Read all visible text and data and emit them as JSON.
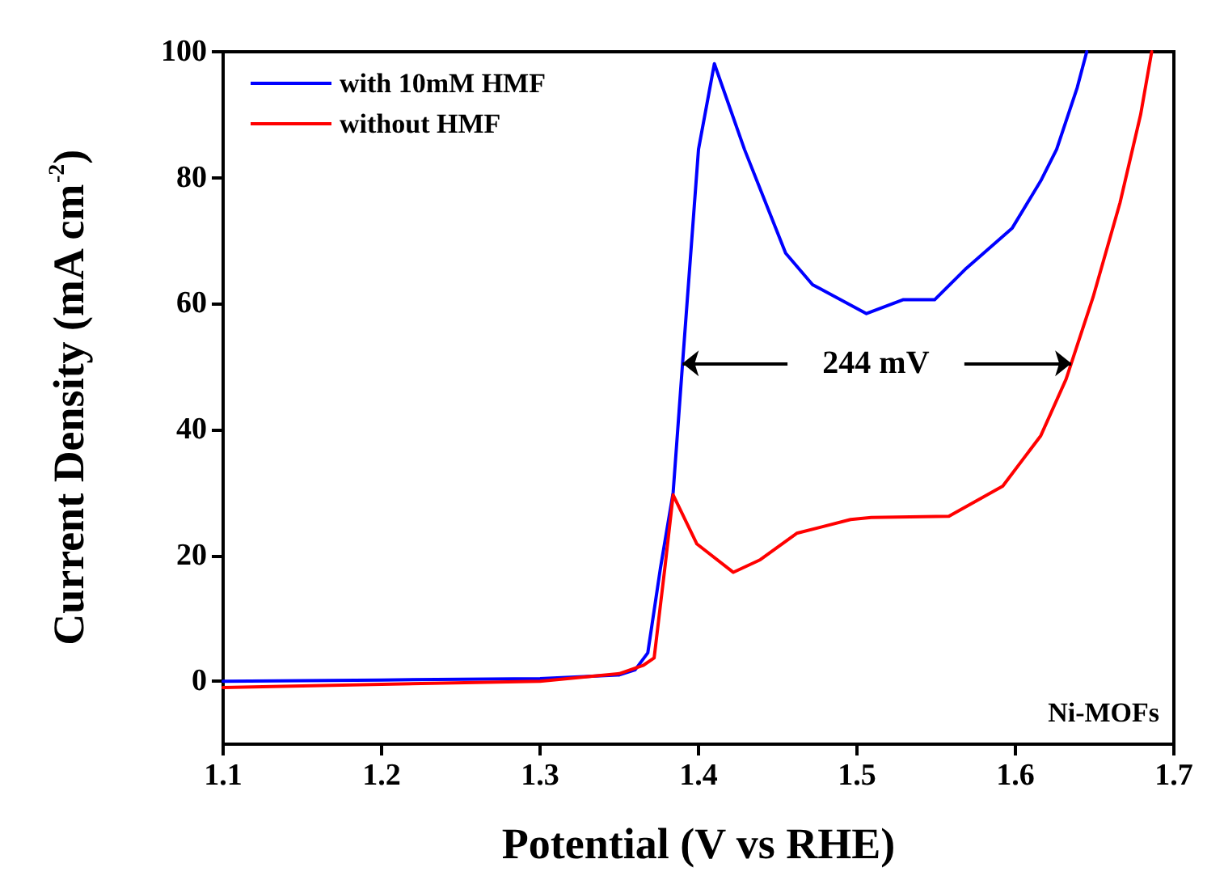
{
  "chart_data": {
    "type": "line",
    "xlabel": "Potential (V vs RHE)",
    "ylabel": "Current Density (mA cm$^{-2}$)",
    "xlim": [
      1.1,
      1.7
    ],
    "xticks": [
      1.1,
      1.2,
      1.3,
      1.4,
      1.5,
      1.6,
      1.7
    ],
    "ylim": [
      -10,
      100
    ],
    "yticks": [
      0,
      20,
      40,
      60,
      80,
      100
    ],
    "grid": false,
    "legend": "top left",
    "marker": "none",
    "line_style": "solid",
    "series": [
      {
        "name": "with 10mM HMF",
        "color": "#0000ff",
        "x": [
          1.1,
          1.2,
          1.3,
          1.35,
          1.36,
          1.368,
          1.376,
          1.384,
          1.39,
          1.4,
          1.41,
          1.429,
          1.455,
          1.472,
          1.506,
          1.529,
          1.549,
          1.569,
          1.598,
          1.616,
          1.626,
          1.639,
          1.645
        ],
        "values": [
          0,
          0.2,
          0.4,
          1.0,
          1.8,
          4.5,
          18,
          30,
          50.7,
          84.5,
          98.1,
          84.5,
          68,
          63,
          58.4,
          60.6,
          60.6,
          65.6,
          72,
          79.5,
          84.5,
          94.3,
          100
        ]
      },
      {
        "name": "without HMF",
        "color": "#ff0000",
        "x": [
          1.1,
          1.2,
          1.3,
          1.35,
          1.365,
          1.372,
          1.379,
          1.384,
          1.399,
          1.422,
          1.439,
          1.462,
          1.496,
          1.509,
          1.558,
          1.592,
          1.616,
          1.632,
          1.649,
          1.666,
          1.679,
          1.686
        ],
        "values": [
          -1,
          -0.5,
          0,
          1.2,
          2.5,
          3.7,
          18.5,
          29.6,
          21.8,
          17.3,
          19.3,
          23.5,
          25.7,
          26,
          26.2,
          31,
          39,
          48,
          61,
          76,
          90,
          100
        ]
      }
    ],
    "annotations": [
      {
        "text": "244 mV",
        "x": 1.634,
        "y": 50.5
      },
      "Ni-MOFs"
    ]
  }
}
